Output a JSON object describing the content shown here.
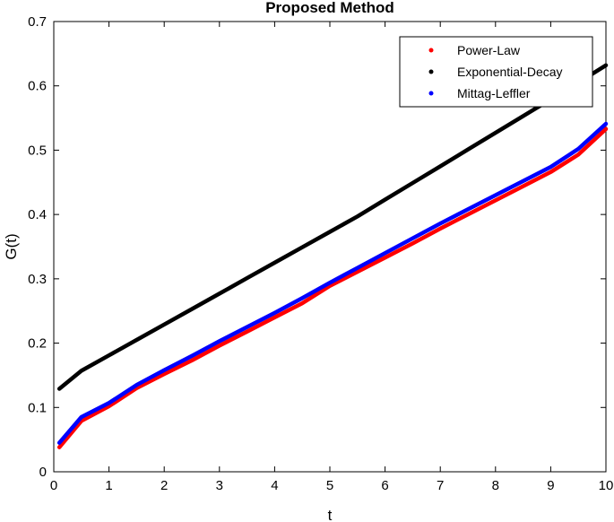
{
  "chart_data": {
    "type": "line",
    "title": "Proposed Method",
    "xlabel": "t",
    "ylabel": "G(t)",
    "xlim": [
      0,
      10
    ],
    "ylim": [
      0,
      0.7
    ],
    "x_ticks": [
      "0",
      "1",
      "2",
      "3",
      "4",
      "5",
      "6",
      "7",
      "8",
      "9",
      "10"
    ],
    "y_ticks": [
      "0",
      "0.1",
      "0.2",
      "0.3",
      "0.4",
      "0.5",
      "0.6",
      "0.7"
    ],
    "grid": false,
    "legend_position": "top-right",
    "x": [
      0.1,
      0.5,
      1,
      1.5,
      2,
      2.5,
      3,
      3.5,
      4,
      4.5,
      5,
      5.5,
      6,
      6.5,
      7,
      7.5,
      8,
      8.5,
      9,
      9.5,
      10
    ],
    "series": [
      {
        "name": "Power-Law",
        "color": "#ff0000",
        "values": [
          0.038,
          0.079,
          0.102,
          0.13,
          0.152,
          0.173,
          0.196,
          0.218,
          0.24,
          0.262,
          0.289,
          0.311,
          0.333,
          0.355,
          0.378,
          0.4,
          0.422,
          0.444,
          0.466,
          0.493,
          0.533
        ]
      },
      {
        "name": "Exponential-Decay",
        "color": "#000000",
        "values": [
          0.129,
          0.157,
          0.181,
          0.205,
          0.229,
          0.253,
          0.277,
          0.301,
          0.325,
          0.349,
          0.373,
          0.397,
          0.423,
          0.449,
          0.475,
          0.501,
          0.527,
          0.553,
          0.579,
          0.605,
          0.632
        ]
      },
      {
        "name": "Mittag-Leffler",
        "color": "#0000ff",
        "values": [
          0.045,
          0.085,
          0.107,
          0.135,
          0.158,
          0.18,
          0.203,
          0.225,
          0.247,
          0.27,
          0.294,
          0.317,
          0.34,
          0.363,
          0.386,
          0.408,
          0.43,
          0.452,
          0.474,
          0.502,
          0.541
        ]
      }
    ]
  }
}
